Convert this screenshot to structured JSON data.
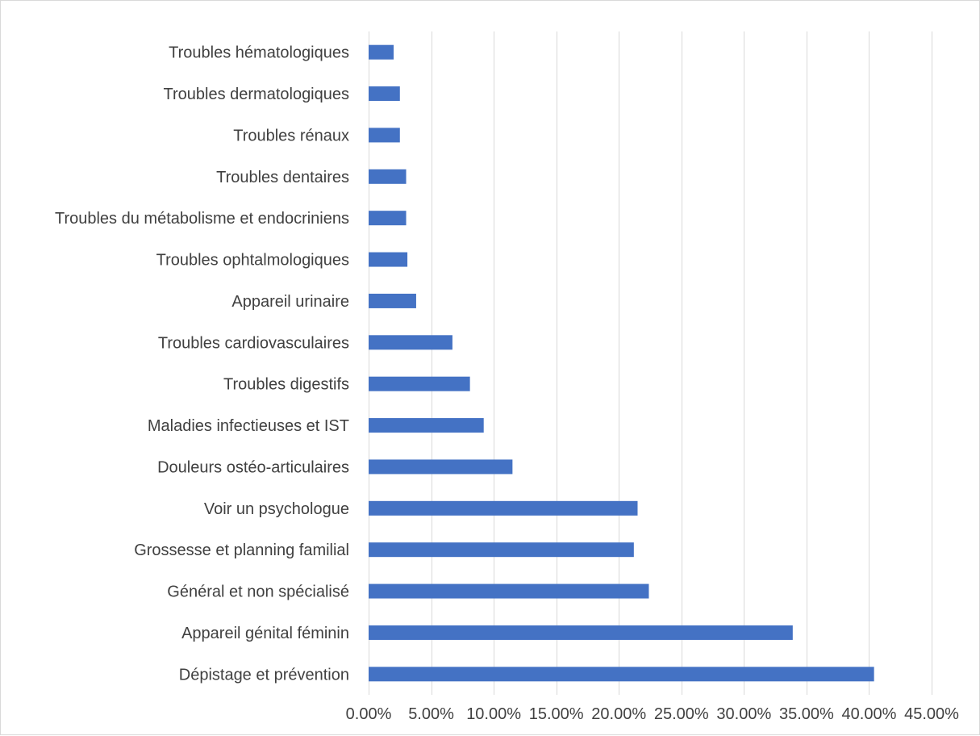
{
  "chart_data": {
    "type": "bar",
    "orientation": "horizontal",
    "title": "",
    "xlabel": "",
    "ylabel": "",
    "xlim": [
      0,
      0.45
    ],
    "grid": true,
    "legend": "none",
    "bar_color": "#4472C4",
    "grid_color": "#d9d9d9",
    "text_color": "#404040",
    "categories": [
      "Dépistage et prévention",
      "Appareil génital féminin",
      "Général et non spécialisé",
      "Grossesse et planning familial",
      "Voir un psychologue",
      "Douleurs ostéo-articulaires",
      "Maladies infectieuses et IST",
      "Troubles digestifs",
      "Troubles cardiovasculaires",
      "Appareil urinaire",
      "Troubles ophtalmologiques",
      "Troubles du métabolisme et endocriniens",
      "Troubles dentaires",
      "Troubles rénaux",
      "Troubles dermatologiques",
      "Troubles hématologiques"
    ],
    "values": [
      0.404,
      0.339,
      0.224,
      0.212,
      0.215,
      0.115,
      0.092,
      0.081,
      0.067,
      0.038,
      0.031,
      0.03,
      0.03,
      0.025,
      0.025,
      0.02
    ],
    "tick_labels": [
      "0.00%",
      "5.00%",
      "10.00%",
      "15.00%",
      "20.00%",
      "25.00%",
      "30.00%",
      "35.00%",
      "40.00%",
      "45.00%"
    ],
    "tick_values": [
      0,
      0.05,
      0.1,
      0.15,
      0.2,
      0.25,
      0.3,
      0.35,
      0.4,
      0.45
    ]
  }
}
